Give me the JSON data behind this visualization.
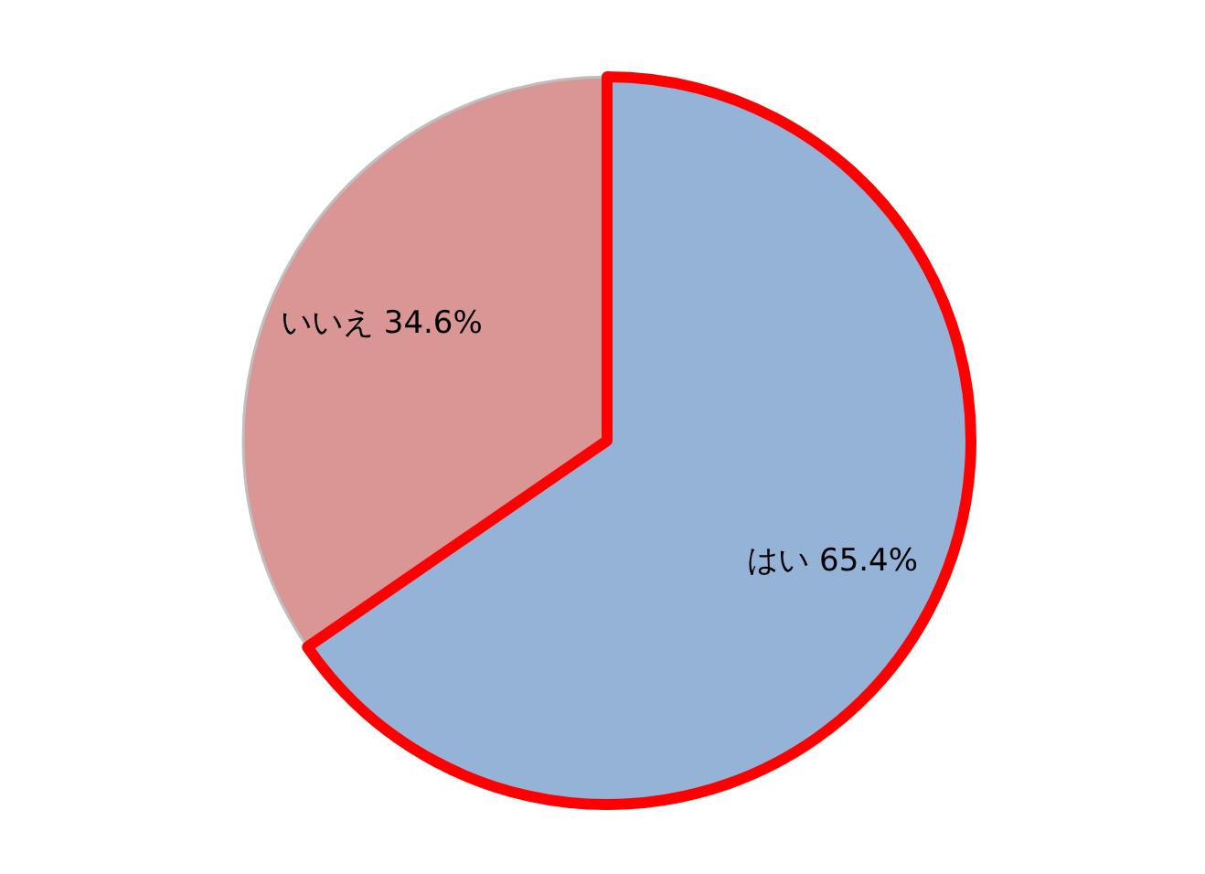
{
  "chart_data": {
    "type": "pie",
    "categories": [
      "はい",
      "いいえ"
    ],
    "values": [
      65.4,
      34.6
    ],
    "colors": [
      "#95b3d7",
      "#d99694"
    ],
    "value_labels": [
      "65.4%",
      "34.6%"
    ]
  }
}
